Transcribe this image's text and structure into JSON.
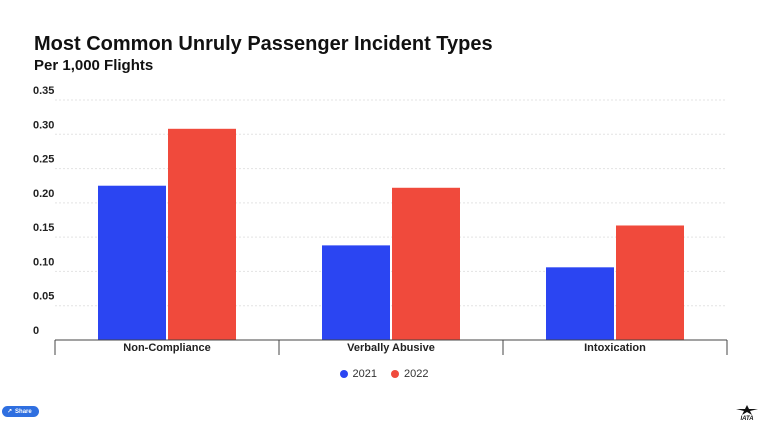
{
  "header": {
    "title": "Most Common Unruly Passenger Incident Types",
    "subtitle": "Per 1,000 Flights"
  },
  "chart_data": {
    "type": "bar",
    "title": "Most Common Unruly Passenger Incident Types",
    "subtitle": "Per 1,000 Flights",
    "xlabel": "",
    "ylabel": "",
    "categories": [
      "Non-Compliance",
      "Verbally Abusive",
      "Intoxication"
    ],
    "series": [
      {
        "name": "2021",
        "values": [
          0.225,
          0.138,
          0.106
        ],
        "color": "#2b45f2"
      },
      {
        "name": "2022",
        "values": [
          0.308,
          0.222,
          0.167
        ],
        "color": "#f04a3c"
      }
    ],
    "ylim": [
      0,
      0.35
    ],
    "yticks": [
      0,
      0.05,
      0.1,
      0.15,
      0.2,
      0.25,
      0.3,
      0.35
    ],
    "ytick_labels": [
      "0",
      "0.05",
      "0.10",
      "0.15",
      "0.20",
      "0.25",
      "0.30",
      "0.35"
    ],
    "grid": true,
    "legend_position": "bottom-center"
  },
  "share": {
    "label": "Share",
    "icon": "share-icon"
  },
  "logo": {
    "text": "IATA",
    "icon": "iata-logo-icon"
  }
}
